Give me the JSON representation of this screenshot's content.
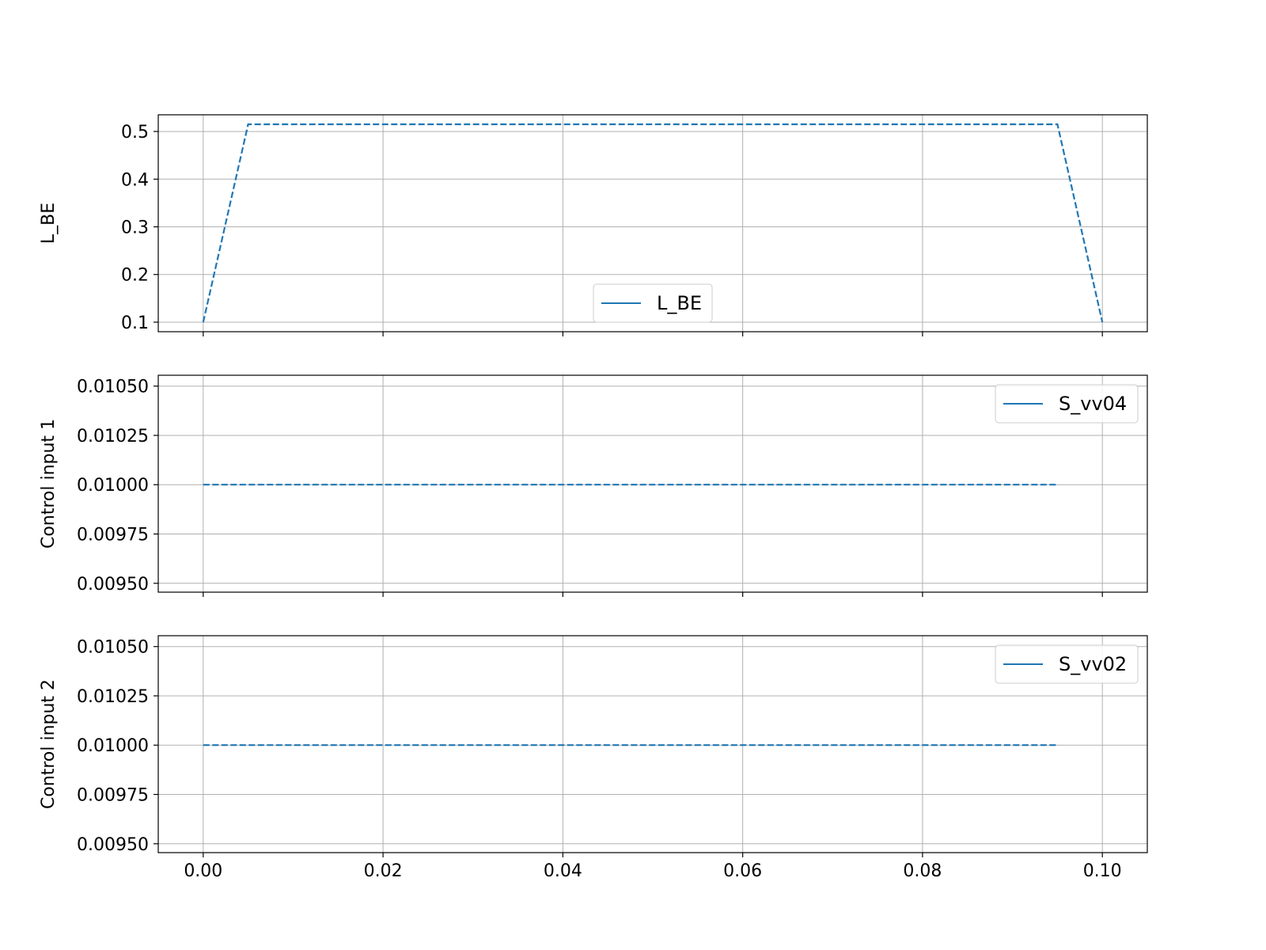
{
  "chart_data": [
    {
      "type": "line",
      "title": "",
      "xlabel": "",
      "ylabel": "L_BE",
      "xlim": [
        -0.005,
        0.105
      ],
      "ylim": [
        0.08,
        0.535
      ],
      "x_ticks": [
        0.0,
        0.02,
        0.04,
        0.06,
        0.08,
        0.1
      ],
      "x_tick_labels": [
        "0.00",
        "0.02",
        "0.04",
        "0.06",
        "0.08",
        "0.10"
      ],
      "y_ticks": [
        0.1,
        0.2,
        0.3,
        0.4,
        0.5
      ],
      "y_tick_labels": [
        "0.1",
        "0.2",
        "0.3",
        "0.4",
        "0.5"
      ],
      "show_x_tick_labels": false,
      "grid": true,
      "legend_position": "lower-center",
      "line_color": "#1f77b4",
      "series": [
        {
          "name": "L_BE",
          "line_style": "dashed",
          "x": [
            0.0,
            0.005,
            0.095,
            0.1
          ],
          "y": [
            0.1,
            0.515,
            0.515,
            0.1
          ]
        }
      ]
    },
    {
      "type": "line",
      "title": "",
      "xlabel": "",
      "ylabel": "Control input 1",
      "xlim": [
        -0.005,
        0.105
      ],
      "ylim": [
        0.009455,
        0.010555
      ],
      "x_ticks": [
        0.0,
        0.02,
        0.04,
        0.06,
        0.08,
        0.1
      ],
      "x_tick_labels": [
        "0.00",
        "0.02",
        "0.04",
        "0.06",
        "0.08",
        "0.10"
      ],
      "y_ticks": [
        0.0095,
        0.00975,
        0.01,
        0.01025,
        0.0105
      ],
      "y_tick_labels": [
        "0.00950",
        "0.00975",
        "0.01000",
        "0.01025",
        "0.01050"
      ],
      "show_x_tick_labels": false,
      "grid": true,
      "legend_position": "upper-right",
      "line_color": "#1f77b4",
      "series": [
        {
          "name": "S_vv04",
          "line_style": "dashed",
          "x": [
            0.0,
            0.095
          ],
          "y": [
            0.01,
            0.01
          ]
        }
      ]
    },
    {
      "type": "line",
      "title": "",
      "xlabel": "",
      "ylabel": "Control input 2",
      "xlim": [
        -0.005,
        0.105
      ],
      "ylim": [
        0.009455,
        0.010555
      ],
      "x_ticks": [
        0.0,
        0.02,
        0.04,
        0.06,
        0.08,
        0.1
      ],
      "x_tick_labels": [
        "0.00",
        "0.02",
        "0.04",
        "0.06",
        "0.08",
        "0.10"
      ],
      "y_ticks": [
        0.0095,
        0.00975,
        0.01,
        0.01025,
        0.0105
      ],
      "y_tick_labels": [
        "0.00950",
        "0.00975",
        "0.01000",
        "0.01025",
        "0.01050"
      ],
      "show_x_tick_labels": true,
      "grid": true,
      "legend_position": "upper-right",
      "line_color": "#1f77b4",
      "series": [
        {
          "name": "S_vv02",
          "line_style": "dashed",
          "x": [
            0.0,
            0.095
          ],
          "y": [
            0.01,
            0.01
          ]
        }
      ]
    }
  ]
}
